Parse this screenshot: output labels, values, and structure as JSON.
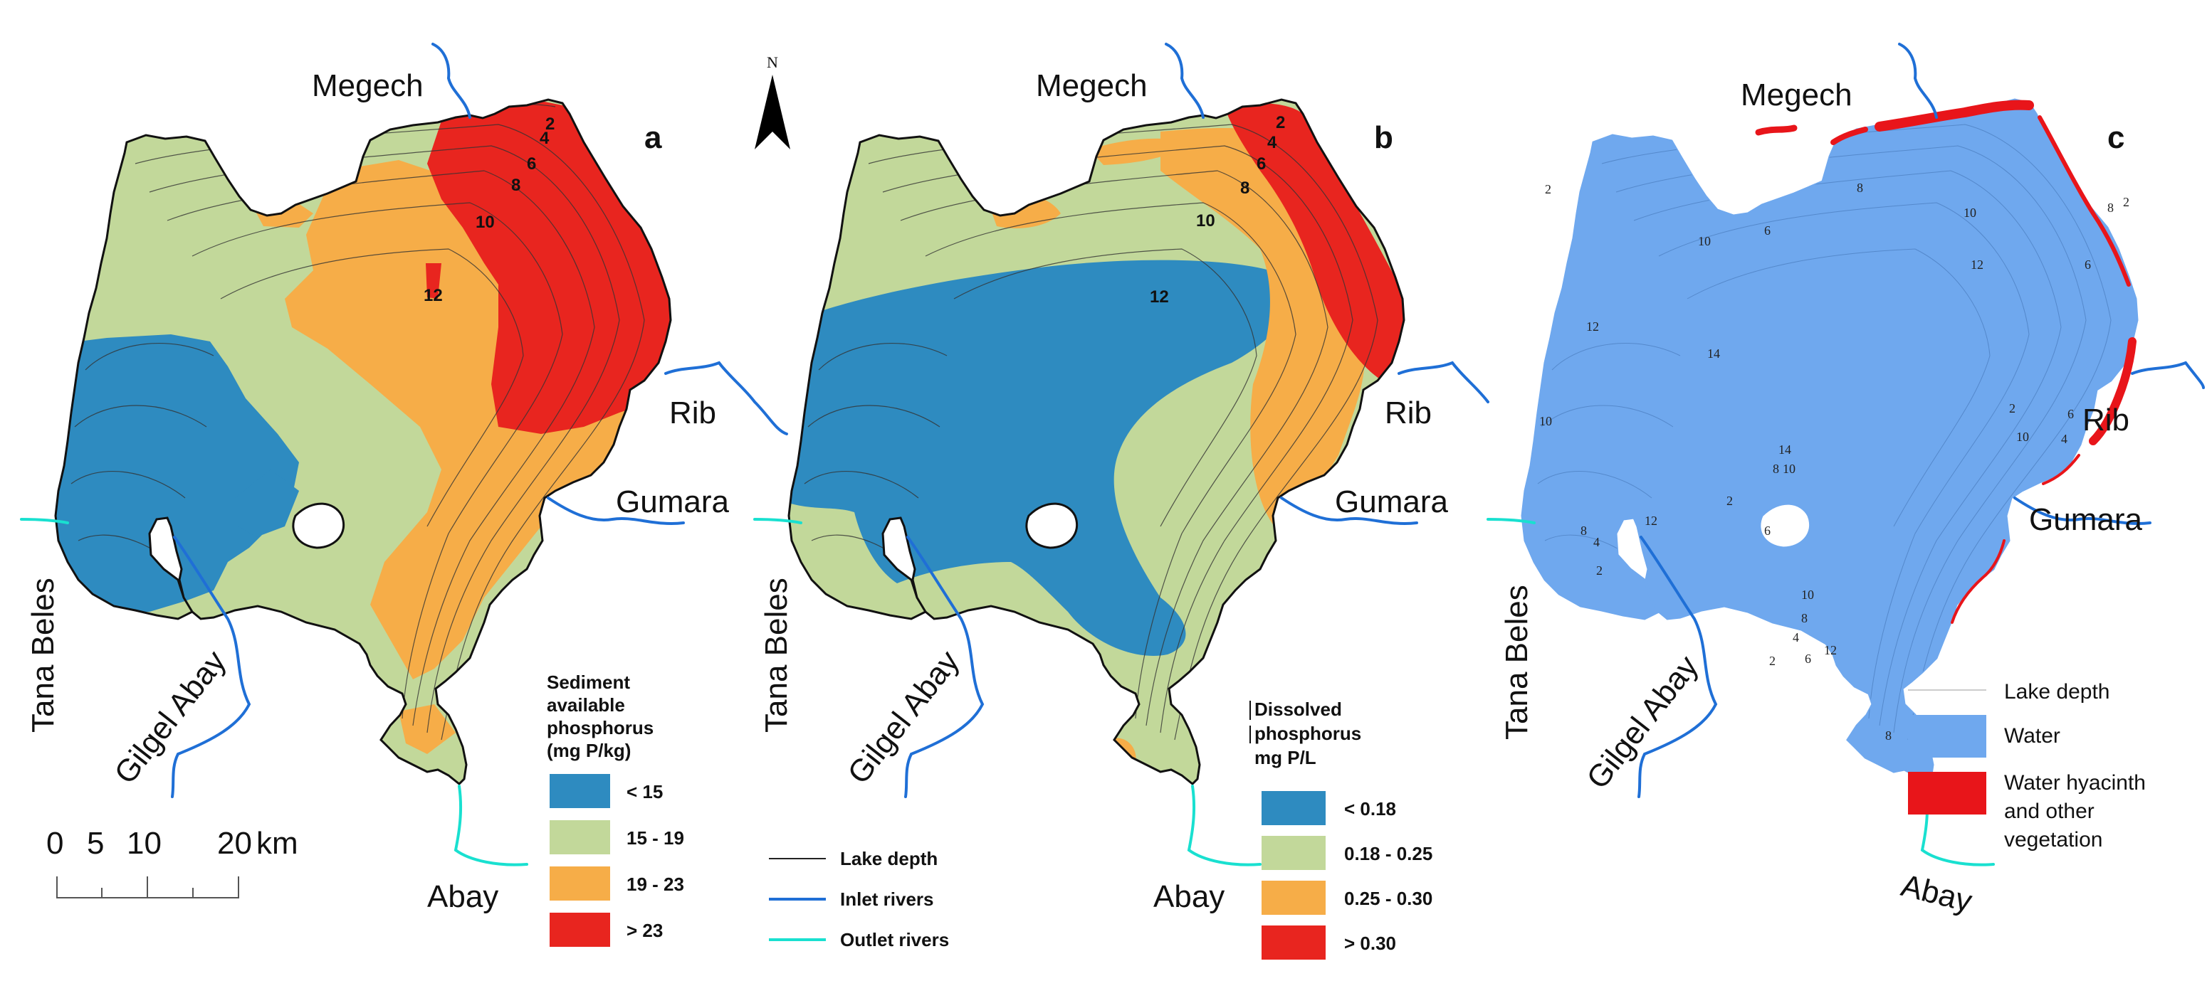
{
  "panels": [
    {
      "letter": "a",
      "rivers": {
        "megech": "Megech",
        "rib": "Rib",
        "gumara": "Gumara",
        "tana_beles": "Tana Beles",
        "gilgel_abay": "Gilgel Abay",
        "abay": "Abay"
      },
      "contours": [
        "2",
        "4",
        "6",
        "8",
        "10",
        "12"
      ],
      "legend": {
        "title_lines": [
          "Sediment",
          "available",
          "phosphorus",
          "(mg P/kg)"
        ],
        "items": [
          {
            "label": "< 15",
            "color": "#2e8bc0"
          },
          {
            "label": "15 - 19",
            "color": "#c2d89a"
          },
          {
            "label": "19 - 23",
            "color": "#f6ad48"
          },
          {
            "label": "> 23",
            "color": "#e8251f"
          }
        ]
      },
      "scale_bar": {
        "ticks": [
          "0",
          "5",
          "10",
          "20"
        ],
        "unit": "km"
      }
    },
    {
      "letter": "b",
      "north_arrow": "N",
      "rivers": {
        "megech": "Megech",
        "rib": "Rib",
        "gumara": "Gumara",
        "tana_beles": "Tana Beles",
        "gilgel_abay": "Gilgel Abay",
        "abay": "Abay"
      },
      "contours": [
        "2",
        "4",
        "6",
        "8",
        "10",
        "12"
      ],
      "legend": {
        "title_lines": [
          "Dissolved",
          "phosphorus",
          "mg P/L"
        ],
        "items": [
          {
            "label": "< 0.18",
            "color": "#2e8bc0"
          },
          {
            "label": "0.18 - 0.25",
            "color": "#c2d89a"
          },
          {
            "label": "0.25 - 0.30",
            "color": "#f6ad48"
          },
          {
            "label": "> 0.30",
            "color": "#e8251f"
          }
        ]
      },
      "line_legend": [
        {
          "label": "Lake depth",
          "color": "#222222"
        },
        {
          "label": "Inlet rivers",
          "color": "#1f6fd6"
        },
        {
          "label": "Outlet rivers",
          "color": "#19e0d0"
        }
      ]
    },
    {
      "letter": "c",
      "rivers": {
        "megech": "Megech",
        "rib": "Rib",
        "gumara": "Gumara",
        "tana_beles": "Tana Beles",
        "gilgel_abay": "Gilgel Abay",
        "abay": "Abay"
      },
      "contours": [
        "2",
        "10",
        "6",
        "8",
        "10",
        "12",
        "6",
        "8",
        "12",
        "14",
        "10",
        "10",
        "6",
        "4",
        "14",
        "8",
        "10",
        "2",
        "6",
        "12",
        "8",
        "4",
        "2",
        "10",
        "8",
        "4",
        "6",
        "12",
        "2",
        "8",
        "2",
        "2"
      ],
      "legend": {
        "items": [
          {
            "label": "Lake depth",
            "color": "#cccccc"
          },
          {
            "label": "Water",
            "color": "#6fa8ee"
          },
          {
            "label": "Water hyacinth and other vegetation",
            "label_lines": [
              "Water hyacinth",
              "and other",
              "vegetation"
            ],
            "color": "#e8151a"
          }
        ]
      }
    }
  ],
  "colors": {
    "water": "#6fa8ee",
    "inlet": "#1f6fd6",
    "outlet": "#19e0d0",
    "vegetation": "#e8151a"
  }
}
